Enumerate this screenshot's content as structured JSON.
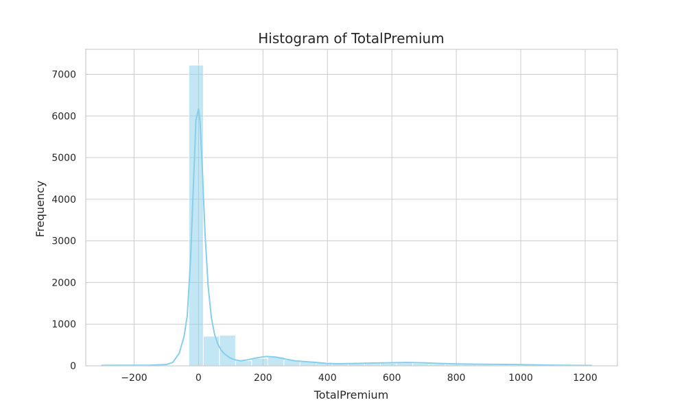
{
  "chart_data": {
    "type": "bar",
    "subtype": "histogram-with-kde",
    "title": "Histogram of TotalPremium",
    "xlabel": "TotalPremium",
    "ylabel": "Frequency",
    "xlim": [
      -350,
      1300
    ],
    "ylim": [
      0,
      7600
    ],
    "xticks": [
      -200,
      0,
      200,
      400,
      600,
      800,
      1000,
      1200
    ],
    "xtick_labels": [
      "−200",
      "0",
      "200",
      "400",
      "600",
      "800",
      "1000",
      "1200"
    ],
    "yticks": [
      0,
      1000,
      2000,
      3000,
      4000,
      5000,
      6000,
      7000
    ],
    "ytick_labels": [
      "0",
      "1000",
      "2000",
      "3000",
      "4000",
      "5000",
      "6000",
      "7000"
    ],
    "grid": true,
    "bin_width": 50,
    "bins": [
      {
        "x0": -300,
        "x1": -250,
        "value": 3
      },
      {
        "x0": -250,
        "x1": -200,
        "value": 3
      },
      {
        "x0": -200,
        "x1": -150,
        "value": 5
      },
      {
        "x0": -150,
        "x1": -100,
        "value": 8
      },
      {
        "x0": -100,
        "x1": -50,
        "value": 15
      },
      {
        "x0": -30,
        "x1": 15,
        "value": 7220
      },
      {
        "x0": 15,
        "x1": 65,
        "value": 710
      },
      {
        "x0": 65,
        "x1": 115,
        "value": 735
      },
      {
        "x0": 115,
        "x1": 165,
        "value": 120
      },
      {
        "x0": 165,
        "x1": 215,
        "value": 180
      },
      {
        "x0": 215,
        "x1": 265,
        "value": 215
      },
      {
        "x0": 265,
        "x1": 315,
        "value": 140
      },
      {
        "x0": 315,
        "x1": 365,
        "value": 105
      },
      {
        "x0": 365,
        "x1": 415,
        "value": 80
      },
      {
        "x0": 415,
        "x1": 465,
        "value": 45
      },
      {
        "x0": 465,
        "x1": 515,
        "value": 50
      },
      {
        "x0": 515,
        "x1": 565,
        "value": 55
      },
      {
        "x0": 565,
        "x1": 615,
        "value": 60
      },
      {
        "x0": 615,
        "x1": 665,
        "value": 65
      },
      {
        "x0": 665,
        "x1": 715,
        "value": 60
      },
      {
        "x0": 715,
        "x1": 765,
        "value": 45
      },
      {
        "x0": 765,
        "x1": 815,
        "value": 35
      },
      {
        "x0": 815,
        "x1": 865,
        "value": 30
      },
      {
        "x0": 865,
        "x1": 915,
        "value": 25
      },
      {
        "x0": 915,
        "x1": 965,
        "value": 20
      },
      {
        "x0": 965,
        "x1": 1015,
        "value": 18
      },
      {
        "x0": 1015,
        "x1": 1065,
        "value": 12
      },
      {
        "x0": 1065,
        "x1": 1115,
        "value": 8
      },
      {
        "x0": 1115,
        "x1": 1165,
        "value": 5
      },
      {
        "x0": 1165,
        "x1": 1215,
        "value": 3
      }
    ],
    "kde": {
      "x": [
        -300,
        -150,
        -100,
        -80,
        -60,
        -45,
        -35,
        -25,
        -15,
        -8,
        0,
        5,
        12,
        20,
        30,
        40,
        50,
        60,
        70,
        80,
        90,
        100,
        115,
        130,
        150,
        180,
        210,
        240,
        270,
        300,
        330,
        360,
        400,
        430,
        480,
        540,
        600,
        650,
        700,
        750,
        800,
        860,
        920,
        980,
        1040,
        1100,
        1160,
        1220
      ],
      "y": [
        10,
        15,
        30,
        80,
        300,
        700,
        1200,
        2500,
        4500,
        5900,
        6170,
        5850,
        4700,
        3200,
        1900,
        1150,
        750,
        520,
        380,
        290,
        230,
        180,
        140,
        120,
        140,
        190,
        225,
        210,
        160,
        120,
        100,
        85,
        55,
        50,
        55,
        65,
        75,
        80,
        72,
        55,
        45,
        40,
        35,
        30,
        22,
        15,
        10,
        8
      ]
    },
    "colors": {
      "bar_fill": "#87ceeb",
      "bar_edge": "#ffffff",
      "kde_line": "#87ceeb",
      "grid": "#cccccc",
      "spine": "#cccccc",
      "text": "#262626"
    }
  }
}
